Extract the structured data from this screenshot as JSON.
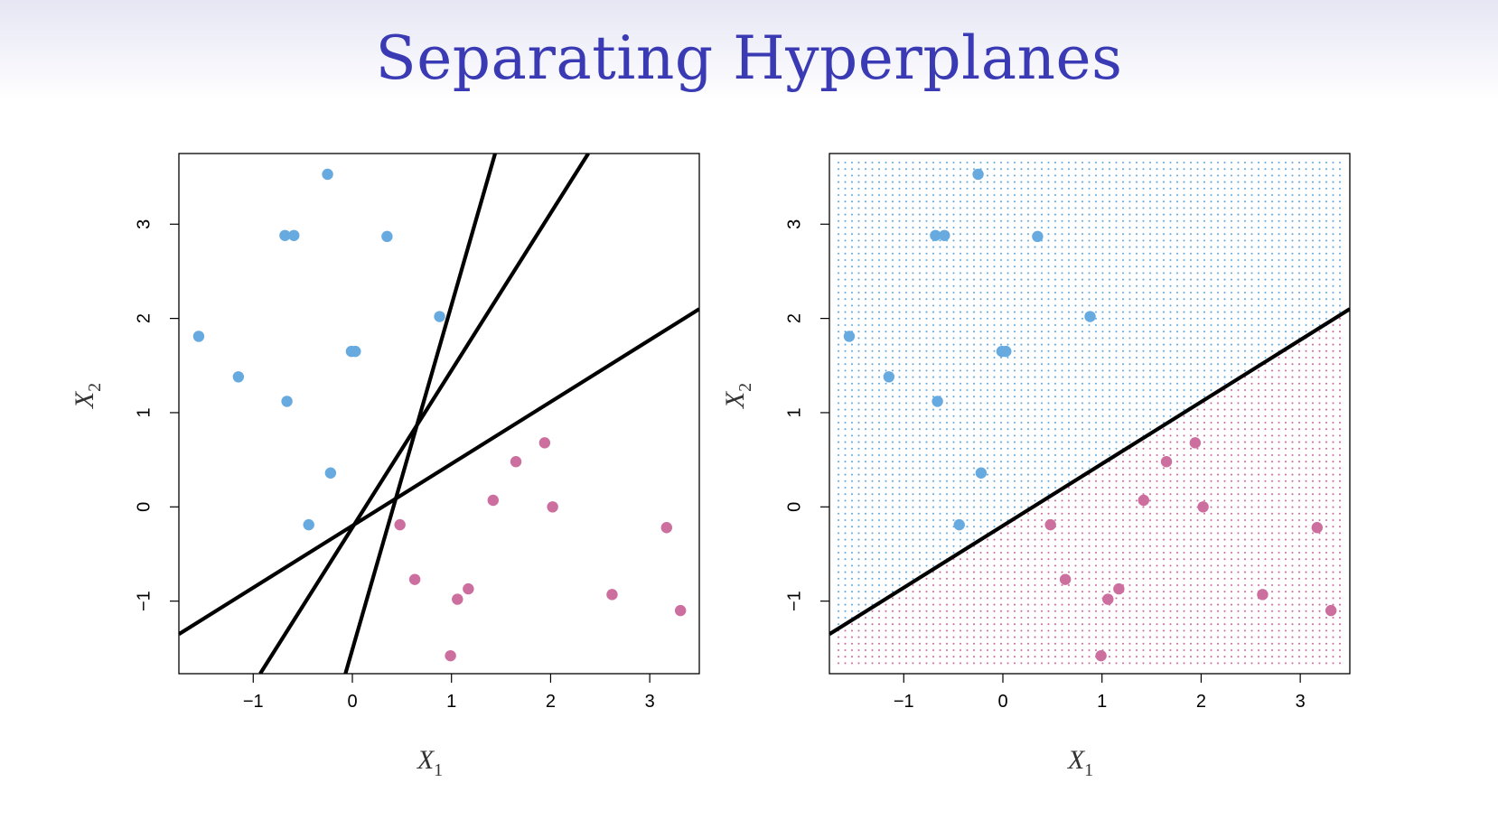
{
  "slide": {
    "title": "Separating Hyperplanes"
  },
  "colors": {
    "blue": "#66aadf",
    "pink": "#cc6f9f",
    "line": "#000000",
    "title": "#3a3ab4"
  },
  "chart_data": [
    {
      "type": "scatter",
      "panel": "left",
      "xlabel": "X",
      "xlabel_sub": "1",
      "ylabel": "X",
      "ylabel_sub": "2",
      "xlim": [
        -1.75,
        3.5
      ],
      "ylim": [
        -1.77,
        3.75
      ],
      "xticks": [
        -1,
        0,
        1,
        2,
        3
      ],
      "yticks": [
        -1,
        0,
        1,
        2,
        3
      ],
      "grid": false,
      "series": [
        {
          "color": "#66aadf",
          "points": [
            [
              -0.25,
              3.53
            ],
            [
              -0.68,
              2.88
            ],
            [
              -0.59,
              2.88
            ],
            [
              0.35,
              2.87
            ],
            [
              0.88,
              2.02
            ],
            [
              -1.55,
              1.81
            ],
            [
              -1.15,
              1.38
            ],
            [
              -0.01,
              1.65
            ],
            [
              0.03,
              1.65
            ],
            [
              -0.66,
              1.12
            ],
            [
              -0.22,
              0.36
            ],
            [
              -0.44,
              -0.19
            ]
          ]
        },
        {
          "color": "#cc6f9f",
          "points": [
            [
              1.94,
              0.68
            ],
            [
              1.65,
              0.48
            ],
            [
              1.42,
              0.07
            ],
            [
              2.02,
              0.0
            ],
            [
              0.48,
              -0.19
            ],
            [
              3.17,
              -0.22
            ],
            [
              0.63,
              -0.77
            ],
            [
              1.17,
              -0.87
            ],
            [
              1.06,
              -0.98
            ],
            [
              2.62,
              -0.93
            ],
            [
              3.31,
              -1.1
            ],
            [
              0.99,
              -1.58
            ]
          ]
        }
      ],
      "lines": [
        {
          "from": [
            -0.07,
            -1.77
          ],
          "to": [
            1.44,
            3.75
          ]
        },
        {
          "from": [
            -0.93,
            -1.77
          ],
          "to": [
            2.38,
            3.75
          ]
        },
        {
          "from": [
            -1.75,
            -1.35
          ],
          "to": [
            3.5,
            2.1
          ]
        }
      ]
    },
    {
      "type": "scatter",
      "panel": "right",
      "xlabel": "X",
      "xlabel_sub": "1",
      "ylabel": "X",
      "ylabel_sub": "2",
      "xlim": [
        -1.75,
        3.5
      ],
      "ylim": [
        -1.77,
        3.75
      ],
      "xticks": [
        -1,
        0,
        1,
        2,
        3
      ],
      "yticks": [
        -1,
        0,
        1,
        2,
        3
      ],
      "grid": false,
      "background": "dotted grid colored by predicted class",
      "series": [
        {
          "color": "#66aadf",
          "points": [
            [
              -0.25,
              3.53
            ],
            [
              -0.68,
              2.88
            ],
            [
              -0.59,
              2.88
            ],
            [
              0.35,
              2.87
            ],
            [
              0.88,
              2.02
            ],
            [
              -1.55,
              1.81
            ],
            [
              -1.15,
              1.38
            ],
            [
              -0.01,
              1.65
            ],
            [
              0.03,
              1.65
            ],
            [
              -0.66,
              1.12
            ],
            [
              -0.22,
              0.36
            ],
            [
              -0.44,
              -0.19
            ]
          ]
        },
        {
          "color": "#cc6f9f",
          "points": [
            [
              1.94,
              0.68
            ],
            [
              1.65,
              0.48
            ],
            [
              1.42,
              0.07
            ],
            [
              2.02,
              0.0
            ],
            [
              0.48,
              -0.19
            ],
            [
              3.17,
              -0.22
            ],
            [
              0.63,
              -0.77
            ],
            [
              1.17,
              -0.87
            ],
            [
              1.06,
              -0.98
            ],
            [
              2.62,
              -0.93
            ],
            [
              3.31,
              -1.1
            ],
            [
              0.99,
              -1.58
            ]
          ]
        }
      ],
      "lines": [
        {
          "from": [
            -1.75,
            -1.35
          ],
          "to": [
            3.5,
            2.1
          ]
        }
      ]
    }
  ]
}
